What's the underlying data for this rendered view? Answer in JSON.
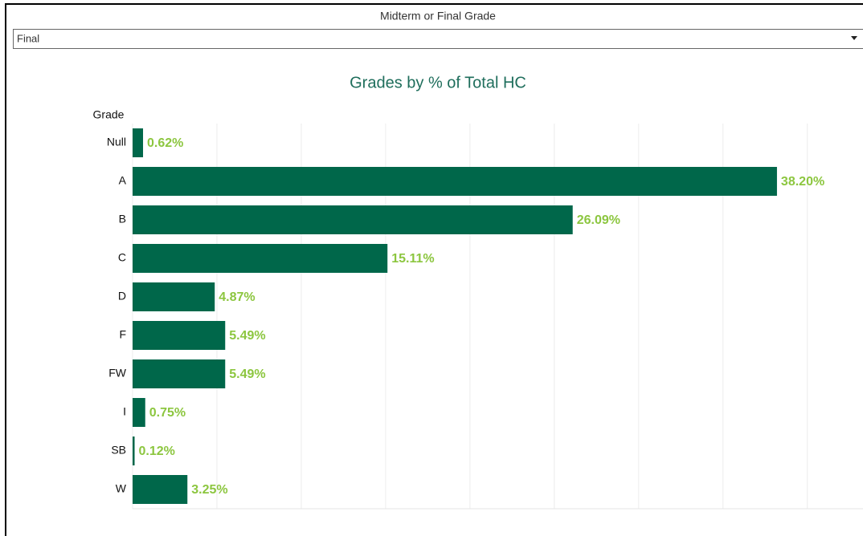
{
  "filter": {
    "label": "Midterm or Final Grade",
    "selected": "Final"
  },
  "chart_data": {
    "type": "bar",
    "orientation": "horizontal",
    "title": "Grades by % of Total HC",
    "category_axis_label": "Grade",
    "categories": [
      "Null",
      "A",
      "B",
      "C",
      "D",
      "F",
      "FW",
      "I",
      "SB",
      "W"
    ],
    "values": [
      0.62,
      38.2,
      26.09,
      15.11,
      4.87,
      5.49,
      5.49,
      0.75,
      0.12,
      3.25
    ],
    "value_labels": [
      "0.62%",
      "38.20%",
      "26.09%",
      "15.11%",
      "4.87%",
      "5.49%",
      "5.49%",
      "0.75%",
      "0.12%",
      "3.25%"
    ],
    "color": "#00674a",
    "label_color": "#8cc63f",
    "xlim": [
      0,
      43.3
    ],
    "xticks": [
      0,
      5,
      10,
      15,
      20,
      25,
      30,
      35,
      40
    ],
    "grid": true
  }
}
